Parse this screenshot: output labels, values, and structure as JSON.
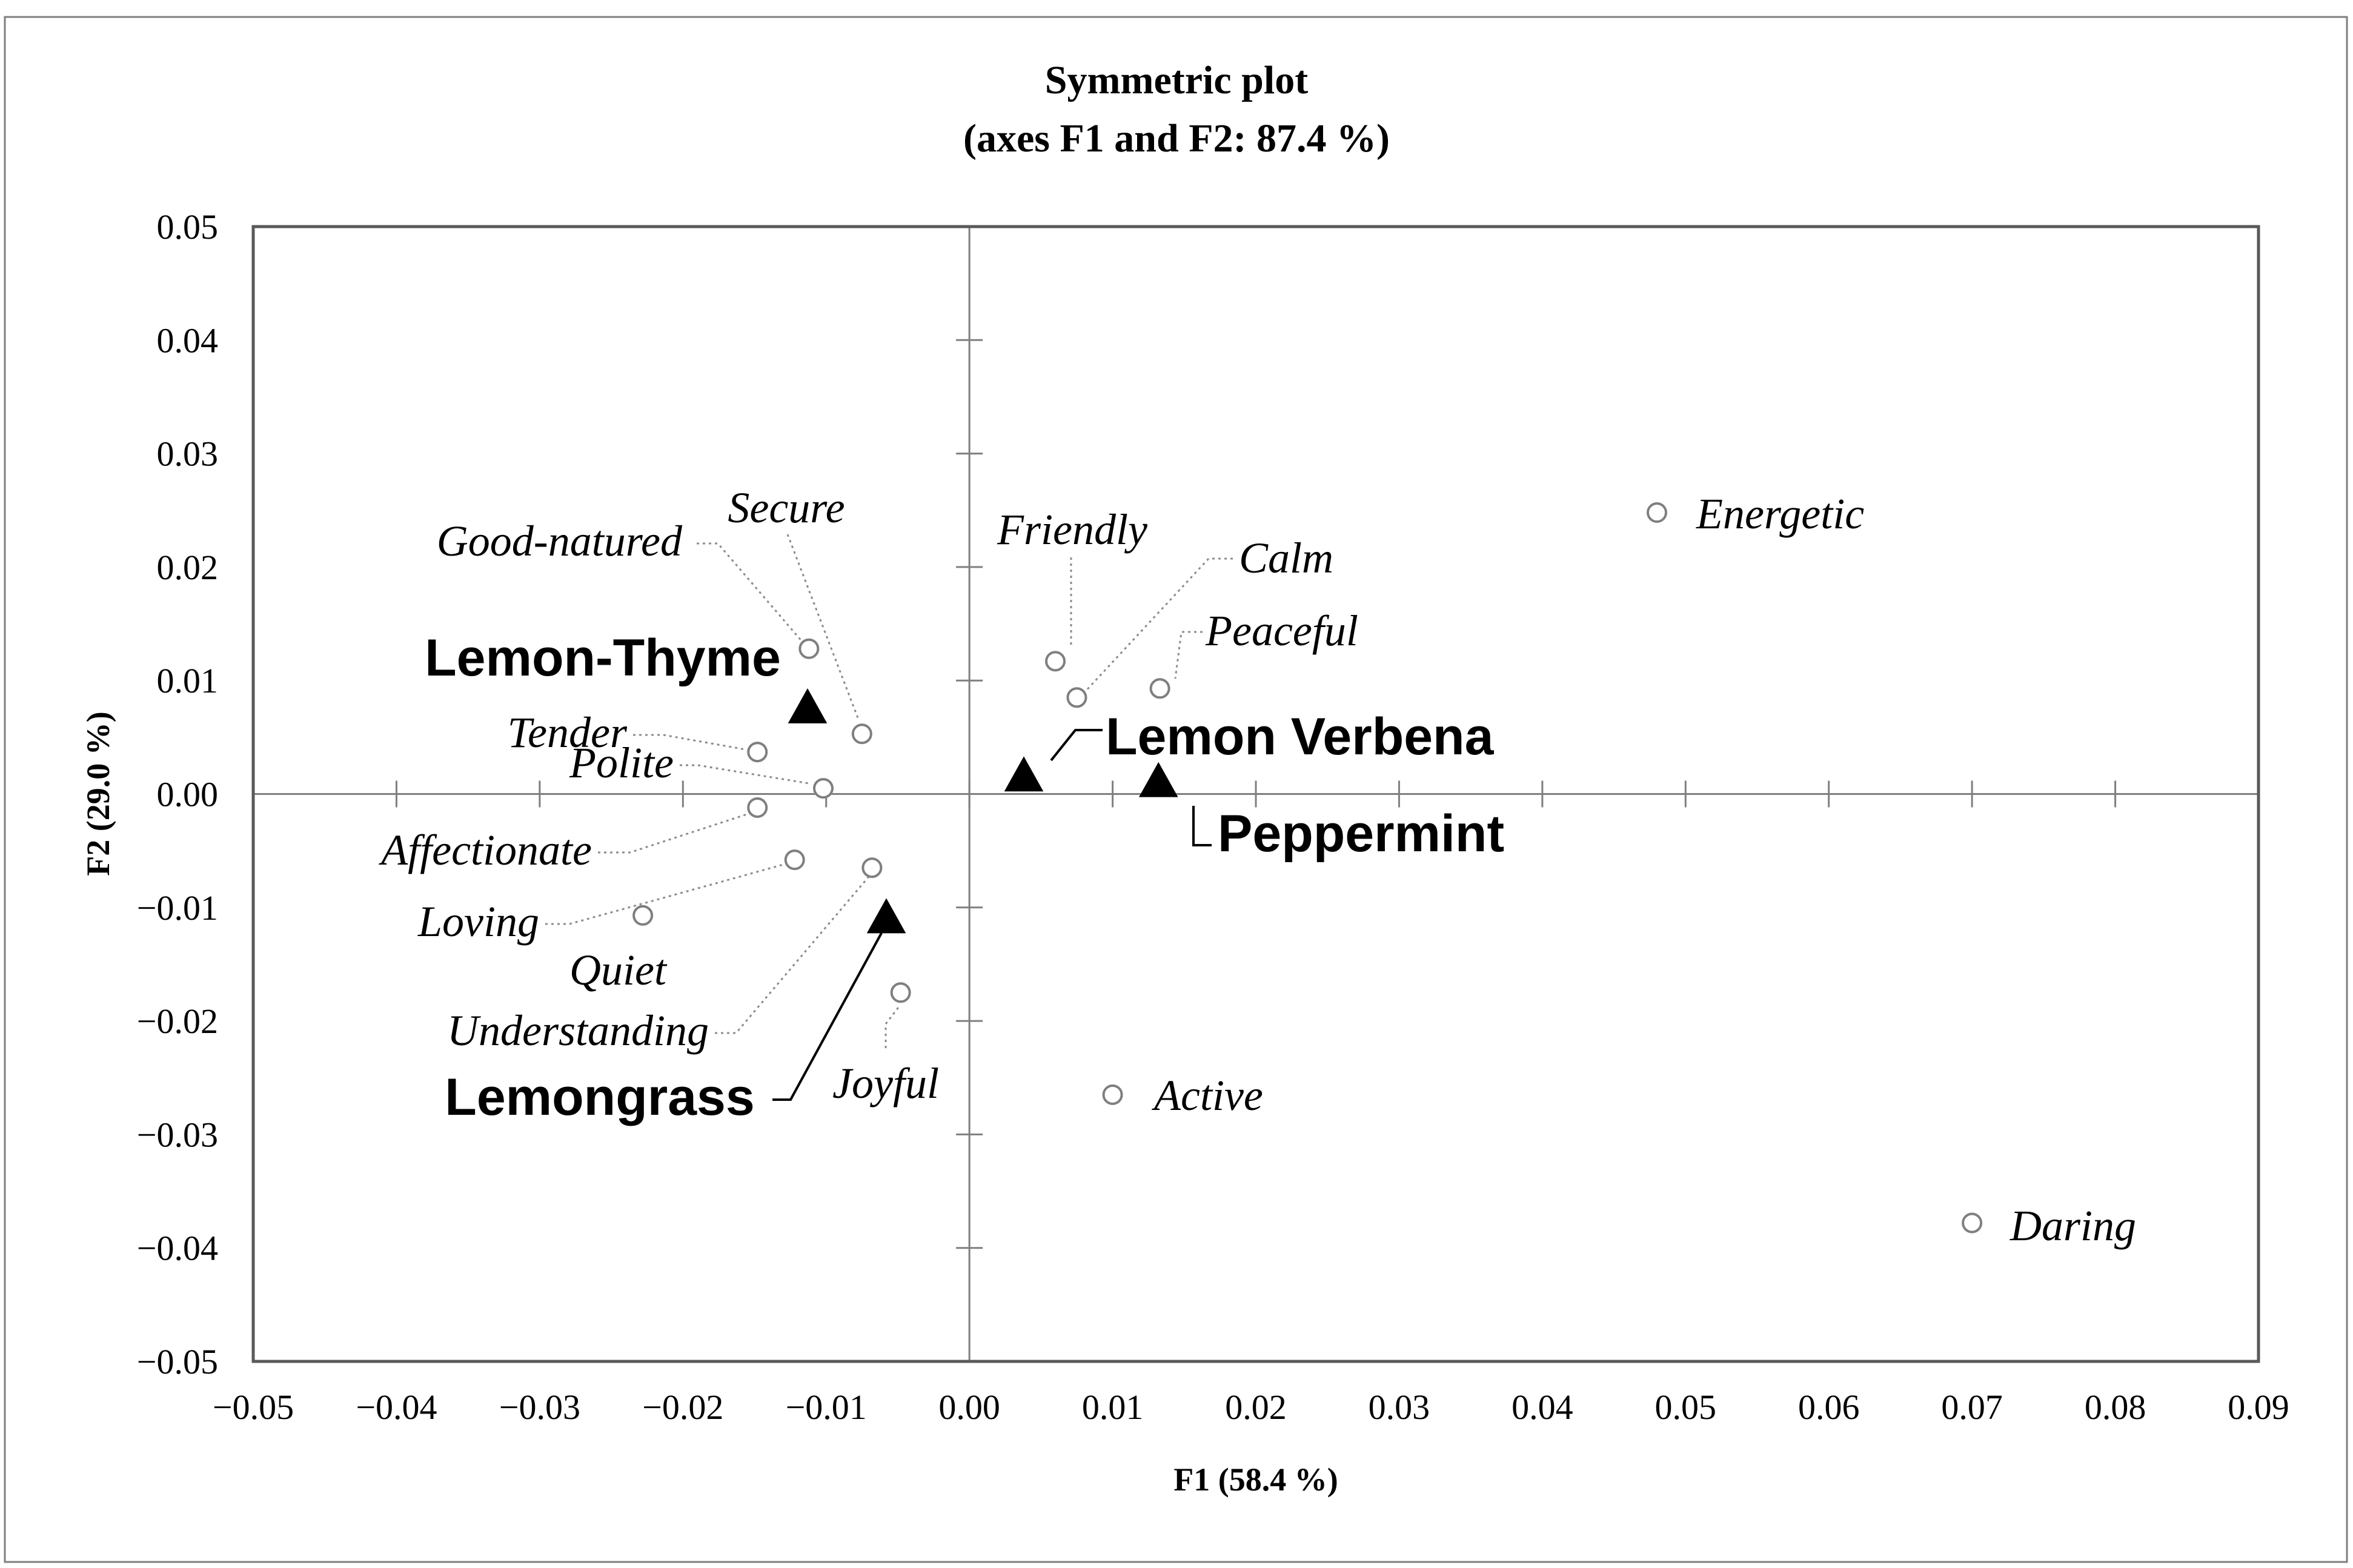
{
  "chart_data": {
    "type": "scatter",
    "title": "Symmetric plot",
    "subtitle": "(axes F1 and F2: 87.4 %)",
    "xlabel": "F1 (58.4 %)",
    "ylabel": "F2 (29.0 %)",
    "xlim": [
      -0.05,
      0.09
    ],
    "ylim": [
      -0.05,
      0.05
    ],
    "x_ticks": [
      -0.05,
      -0.04,
      -0.03,
      -0.02,
      -0.01,
      0.0,
      0.01,
      0.02,
      0.03,
      0.04,
      0.05,
      0.06,
      0.07,
      0.08,
      0.09
    ],
    "x_tick_labels": [
      "−0.05",
      "−0.04",
      "−0.03",
      "−0.02",
      "−0.01",
      "0.00",
      "0.01",
      "0.02",
      "0.03",
      "0.04",
      "0.05",
      "0.06",
      "0.07",
      "0.08",
      "0.09"
    ],
    "y_ticks": [
      0.05,
      0.04,
      0.03,
      0.02,
      0.01,
      0.0,
      -0.01,
      -0.02,
      -0.03,
      -0.04,
      -0.05
    ],
    "y_tick_labels": [
      "0.05",
      "0.04",
      "0.03",
      "0.02",
      "0.01",
      "0.00",
      "−0.01",
      "−0.02",
      "−0.03",
      "−0.04",
      "−0.05"
    ],
    "grid": false,
    "series": [
      {
        "marker": "open-circle",
        "points": [
          {
            "label": "Energetic",
            "x": 0.048,
            "y": 0.0248
          },
          {
            "label": "Daring",
            "x": 0.07,
            "y": -0.0378
          },
          {
            "label": "Active",
            "x": 0.01,
            "y": -0.0265
          },
          {
            "label": "Friendly",
            "x": 0.006,
            "y": 0.0117
          },
          {
            "label": "Calm",
            "x": 0.0075,
            "y": 0.0085
          },
          {
            "label": "Peaceful",
            "x": 0.0133,
            "y": 0.0093
          },
          {
            "label": "Good-natured",
            "x": -0.0112,
            "y": 0.0128
          },
          {
            "label": "Secure",
            "x": -0.0075,
            "y": 0.0053
          },
          {
            "label": "Tender",
            "x": -0.0148,
            "y": 0.0037
          },
          {
            "label": "Polite",
            "x": -0.0102,
            "y": 0.0005
          },
          {
            "label": "Affectionate",
            "x": -0.0148,
            "y": -0.0012
          },
          {
            "label": "Loving",
            "x": -0.0122,
            "y": -0.0058
          },
          {
            "label": "Quiet",
            "x": -0.0228,
            "y": -0.0107
          },
          {
            "label": "Understanding",
            "x": -0.0068,
            "y": -0.0065
          },
          {
            "label": "Joyful",
            "x": -0.0048,
            "y": -0.0175
          }
        ]
      },
      {
        "marker": "filled-triangle",
        "points": [
          {
            "label": "Lemon-Thyme",
            "x": -0.0113,
            "y": 0.0075
          },
          {
            "label": "Lemon Verbena",
            "x": 0.0038,
            "y": 0.0015
          },
          {
            "label": "Peppermint",
            "x": 0.0132,
            "y": 0.001
          },
          {
            "label": "Lemongrass",
            "x": -0.0058,
            "y": -0.011
          }
        ]
      }
    ]
  }
}
